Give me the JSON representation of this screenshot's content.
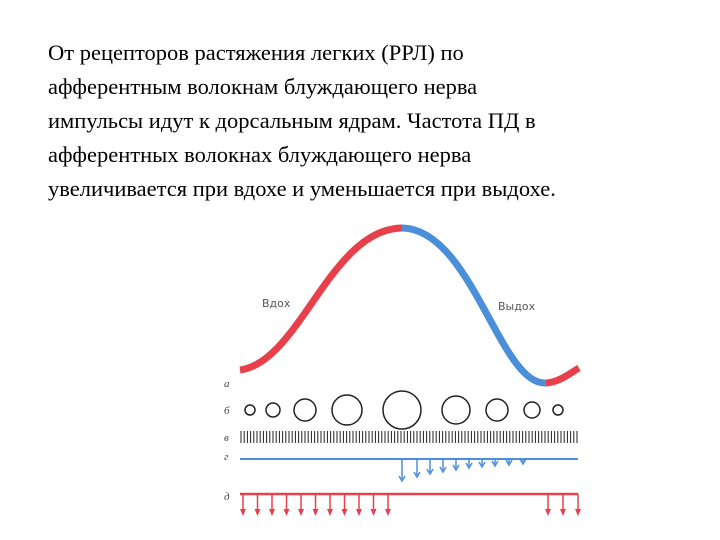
{
  "text": {
    "lines": [
      "От рецепторов растяжения легких (РРЛ) по",
      "афферентным волокнам блуждающего нерва",
      "импульсы идут к дорсальным ядрам. Частота ПД в",
      "афферентных волокнах блуждающего нерва",
      "увеличивается при вдохе и уменьшается при выдохе."
    ]
  },
  "figure": {
    "inhale": "Вдох",
    "exhale": "Выдох",
    "rows": [
      "а",
      "б",
      "в",
      "г",
      "д"
    ]
  }
}
